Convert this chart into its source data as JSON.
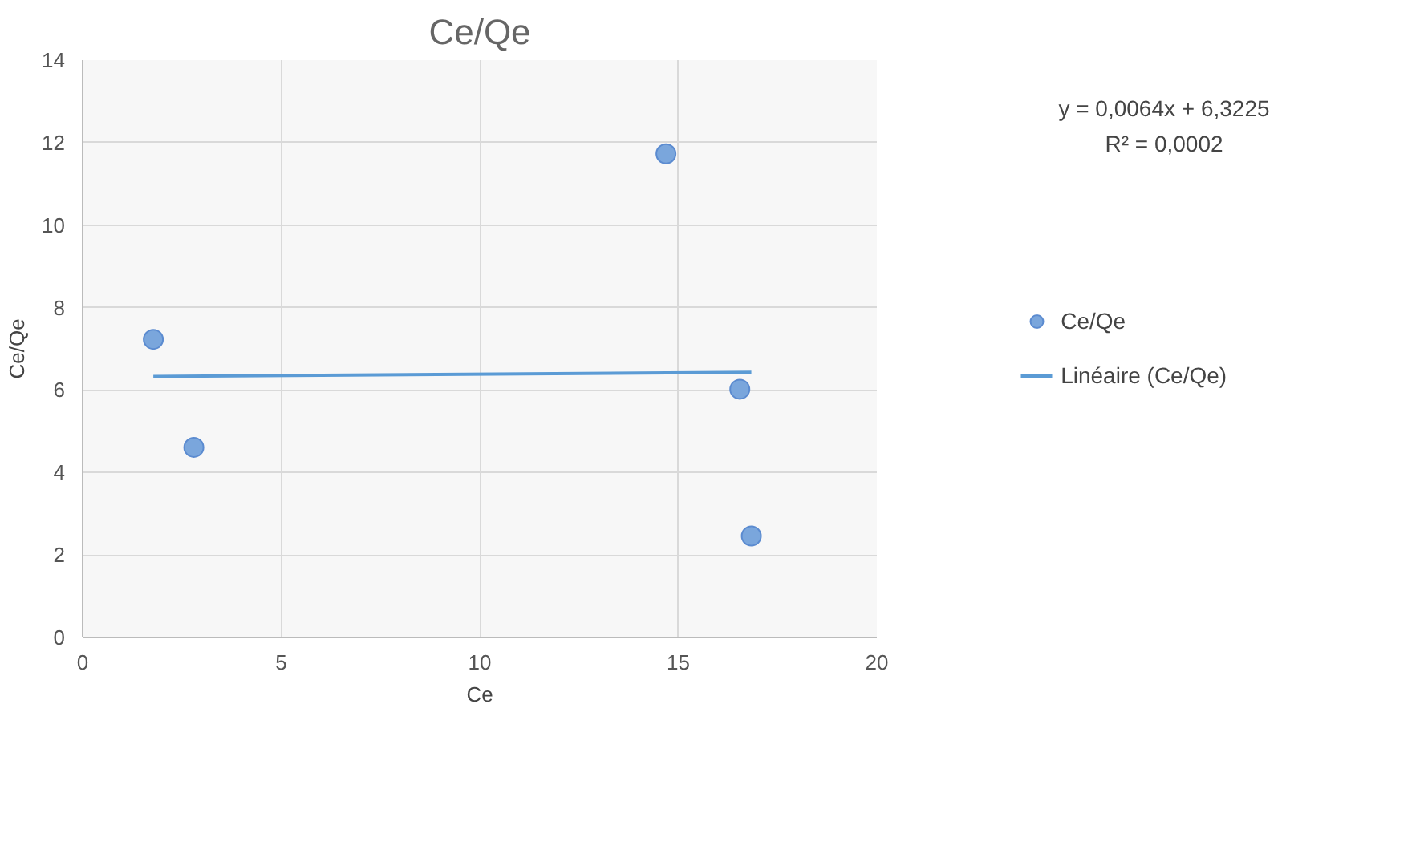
{
  "chart_data": {
    "type": "scatter",
    "title": "Ce/Qe",
    "xlabel": "Ce",
    "ylabel": "Ce/Qe",
    "xlim": [
      0,
      20
    ],
    "xticks": [
      0,
      5,
      10,
      15,
      20
    ],
    "ylim": [
      0,
      14
    ],
    "yticks": [
      0,
      2,
      4,
      6,
      8,
      10,
      12,
      14
    ],
    "grid": true,
    "legend": "right",
    "series": [
      {
        "name": "Ce/Qe",
        "type": "scatter",
        "marker": "circle",
        "color": "#7aa6dc",
        "x": [
          1.78,
          2.8,
          14.69,
          16.55,
          16.84
        ],
        "values": [
          7.23,
          4.61,
          11.73,
          6.02,
          2.46
        ]
      },
      {
        "name": "Linéaire (Ce/Qe)",
        "type": "line",
        "marker": "none",
        "color": "#5b9bd5",
        "line_style": "solid",
        "x": [
          1.78,
          16.84
        ],
        "values": [
          6.33,
          6.43
        ]
      }
    ],
    "annotations": [
      "y = 0,0064x + 6,3225",
      "R² = 0,0002"
    ]
  }
}
